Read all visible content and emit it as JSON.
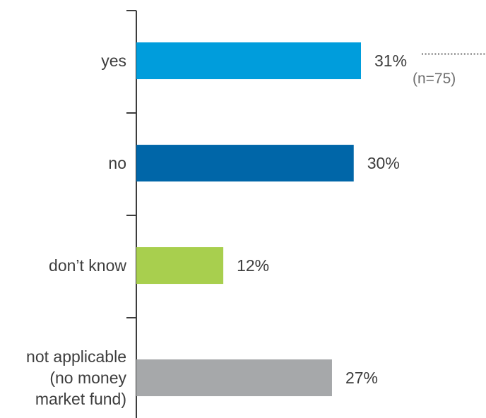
{
  "chart_data": {
    "type": "bar",
    "orientation": "horizontal",
    "categories": [
      [
        "yes"
      ],
      [
        "no"
      ],
      [
        "don’t know"
      ],
      [
        "not applicable",
        "(no money",
        "market fund)"
      ]
    ],
    "values": [
      31,
      30,
      12,
      27
    ],
    "value_labels": [
      "31%",
      "30%",
      "12%",
      "27%"
    ],
    "colors": [
      "#009ddc",
      "#0066a8",
      "#a8cf4e",
      "#a6a8aa"
    ],
    "xlim": [
      0,
      31
    ],
    "grid": false,
    "legend": "none",
    "annotation": "(n=75)"
  }
}
